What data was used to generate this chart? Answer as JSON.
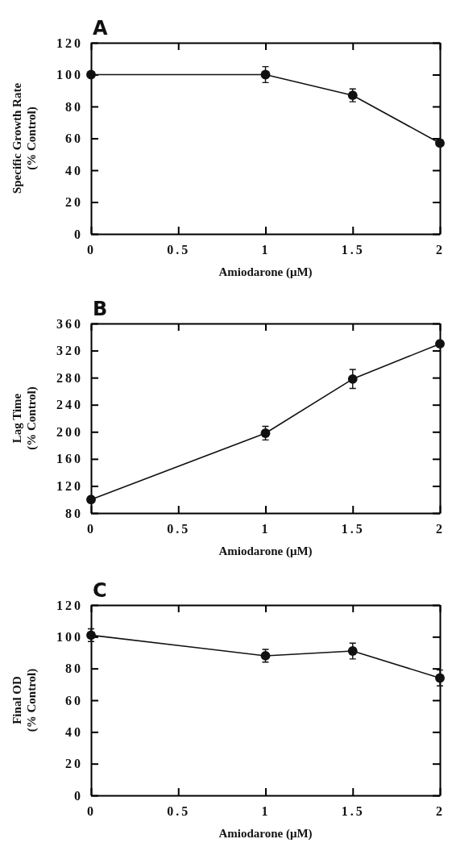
{
  "chart_data": [
    {
      "type": "line",
      "title": "A",
      "xlabel": "Amiodarone (μM)",
      "ylabel": "Specific Growth Rate\n(% Control)",
      "x": [
        0,
        1,
        1.5,
        2
      ],
      "values": [
        100,
        100,
        87,
        57
      ],
      "errors": [
        null,
        5,
        4,
        2
      ],
      "color": "#111111",
      "marker": "circle",
      "xlim": [
        0,
        2
      ],
      "xticks": [
        0,
        0.5,
        1,
        1.5,
        2
      ],
      "ylim": [
        0,
        120
      ],
      "yticks": [
        0,
        20,
        40,
        60,
        80,
        100,
        120
      ],
      "grid": false
    },
    {
      "type": "line",
      "title": "B",
      "xlabel": "Amiodarone (μM)",
      "ylabel": "Lag Time\n(% Control)",
      "x": [
        0,
        1,
        1.5,
        2
      ],
      "values": [
        100,
        198,
        278,
        330
      ],
      "errors": [
        null,
        10,
        14,
        null
      ],
      "color": "#111111",
      "marker": "circle",
      "xlim": [
        0,
        2
      ],
      "xticks": [
        0,
        0.5,
        1,
        1.5,
        2
      ],
      "ylim": [
        80,
        360
      ],
      "yticks": [
        80,
        120,
        160,
        200,
        240,
        280,
        320,
        360
      ],
      "grid": false
    },
    {
      "type": "line",
      "title": "C",
      "xlabel": "Amiodarone (μM)",
      "ylabel": "Final OD\n(% Control)",
      "x": [
        0,
        1,
        1.5,
        2
      ],
      "values": [
        101,
        88,
        91,
        74
      ],
      "errors": [
        4,
        4,
        5,
        5
      ],
      "color": "#111111",
      "marker": "circle",
      "xlim": [
        0,
        2
      ],
      "xticks": [
        0,
        0.5,
        1,
        1.5,
        2
      ],
      "ylim": [
        0,
        120
      ],
      "yticks": [
        0,
        20,
        40,
        60,
        80,
        100,
        120
      ],
      "grid": false
    }
  ]
}
